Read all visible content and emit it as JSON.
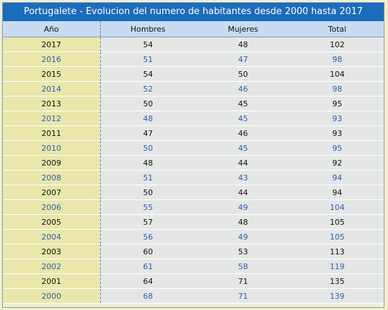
{
  "title": "Portugalete - Evolucion del numero de habitantes desde 2000 hasta 2017",
  "headers": {
    "year": "Año",
    "men": "Hombres",
    "women": "Mujeres",
    "total": "Total"
  },
  "rows": [
    {
      "year": "2017",
      "men": "54",
      "women": "48",
      "total": "102"
    },
    {
      "year": "2016",
      "men": "51",
      "women": "47",
      "total": "98"
    },
    {
      "year": "2015",
      "men": "54",
      "women": "50",
      "total": "104"
    },
    {
      "year": "2014",
      "men": "52",
      "women": "46",
      "total": "98"
    },
    {
      "year": "2013",
      "men": "50",
      "women": "45",
      "total": "95"
    },
    {
      "year": "2012",
      "men": "48",
      "women": "45",
      "total": "93"
    },
    {
      "year": "2011",
      "men": "47",
      "women": "46",
      "total": "93"
    },
    {
      "year": "2010",
      "men": "50",
      "women": "45",
      "total": "95"
    },
    {
      "year": "2009",
      "men": "48",
      "women": "44",
      "total": "92"
    },
    {
      "year": "2008",
      "men": "51",
      "women": "43",
      "total": "94"
    },
    {
      "year": "2007",
      "men": "50",
      "women": "44",
      "total": "94"
    },
    {
      "year": "2006",
      "men": "55",
      "women": "49",
      "total": "104"
    },
    {
      "year": "2005",
      "men": "57",
      "women": "48",
      "total": "105"
    },
    {
      "year": "2004",
      "men": "56",
      "women": "49",
      "total": "105"
    },
    {
      "year": "2003",
      "men": "60",
      "women": "53",
      "total": "113"
    },
    {
      "year": "2002",
      "men": "61",
      "women": "58",
      "total": "119"
    },
    {
      "year": "2001",
      "men": "64",
      "women": "71",
      "total": "135"
    },
    {
      "year": "2000",
      "men": "68",
      "women": "71",
      "total": "139"
    }
  ],
  "colors": {
    "title_bg": "#1c6cbd",
    "header_bg": "#c9dbf1",
    "year_col_bg": "#e9e7a9",
    "cell_bg": "#e5e6e6",
    "page_bg": "#f2efcd",
    "alt_text": "#2a5db0"
  }
}
